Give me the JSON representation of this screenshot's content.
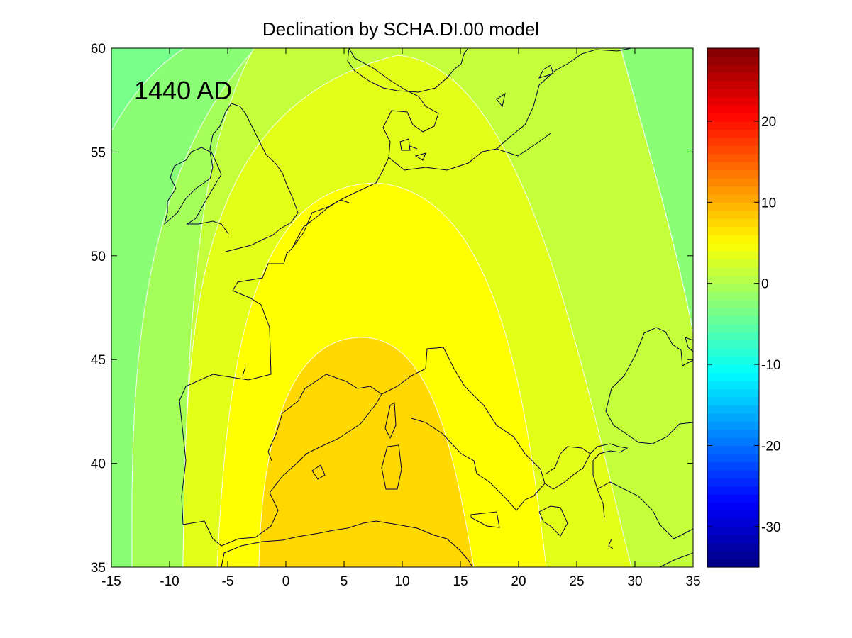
{
  "title": "Declination by SCHA.DI.00 model",
  "annotation": "1440 AD",
  "chart_data": {
    "type": "heatmap",
    "title": "Declination by SCHA.DI.00 model",
    "xlabel": "",
    "ylabel": "",
    "xlim": [
      -15,
      35
    ],
    "ylim": [
      35,
      60
    ],
    "x_ticks": [
      -15,
      -10,
      -5,
      0,
      5,
      10,
      15,
      20,
      25,
      30,
      35
    ],
    "x_tick_labels": [
      "-15",
      "-10",
      "-5",
      "0",
      "5",
      "10",
      "15",
      "20",
      "25",
      "30",
      "35"
    ],
    "y_ticks": [
      35,
      40,
      45,
      50,
      55,
      60
    ],
    "y_tick_labels": [
      "35",
      "40",
      "45",
      "50",
      "55",
      "60"
    ],
    "colorbar": {
      "range": [
        -35,
        29
      ],
      "ticks": [
        -30,
        -20,
        -10,
        0,
        10,
        20
      ],
      "tick_labels": [
        "-30",
        "-20",
        "-10",
        "0",
        "10",
        "20"
      ],
      "colormap": "jet"
    },
    "contour_levels": [
      -4,
      -2,
      0,
      2,
      4,
      6
    ],
    "contour_apex": [
      {
        "level": 6,
        "x": 6.5,
        "y": 46.0
      },
      {
        "level": 4,
        "x": 8.0,
        "y": 53.4
      },
      {
        "level": 2,
        "x": 10.5,
        "y": 59.5
      }
    ],
    "band_colors": {
      "above_6": "#FFD800",
      "4_to_6": "#FFFF00",
      "2_to_4": "#E2FF1A",
      "0_to_2": "#C3FF3B",
      "-2_to_0": "#A6FF59",
      "-4_to_-2": "#8AFF76",
      "below_-4": "#76FF8A"
    }
  }
}
